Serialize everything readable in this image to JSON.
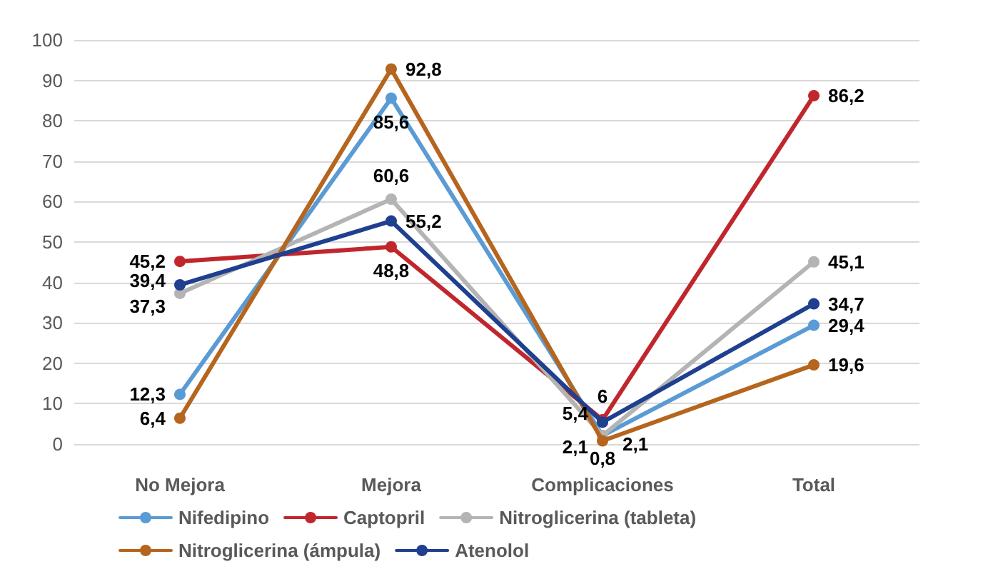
{
  "chart_data": {
    "type": "line",
    "categories": [
      "No Mejora",
      "Mejora",
      "Complicaciones",
      "Total"
    ],
    "ylim": [
      0,
      100
    ],
    "yticks": [
      0,
      10,
      20,
      30,
      40,
      50,
      60,
      70,
      80,
      90,
      100
    ],
    "grid": "y",
    "legend": "bottom",
    "marker": "circle",
    "line_style": "solid",
    "series": [
      {
        "name": "Nifedipino",
        "color": "#5b9bd5",
        "values": [
          12.3,
          85.6,
          2.1,
          29.4
        ],
        "value_labels": [
          "12,3",
          "85,6",
          "2,1",
          "29,4"
        ]
      },
      {
        "name": "Captopril",
        "color": "#c0272d",
        "values": [
          45.2,
          48.8,
          6,
          86.2
        ],
        "value_labels": [
          "45,2",
          "48,8",
          "6",
          "86,2"
        ]
      },
      {
        "name": "Nitroglicerina (tableta)",
        "color": "#b4b4b4",
        "values": [
          37.3,
          60.6,
          2.1,
          45.1
        ],
        "value_labels": [
          "37,3",
          "60,6",
          "2,1",
          "45,1"
        ]
      },
      {
        "name": "Nitroglicerina (ámpula)",
        "color": "#b5651d",
        "values": [
          6.4,
          92.8,
          0.8,
          19.6
        ],
        "value_labels": [
          "6,4",
          "92,8",
          "0,8",
          "19,6"
        ]
      },
      {
        "name": "Atenolol",
        "color": "#1f3f8f",
        "values": [
          39.4,
          55.2,
          5.4,
          34.7
        ],
        "value_labels": [
          "39,4",
          "55,2",
          "5,4",
          "34,7"
        ]
      }
    ]
  }
}
